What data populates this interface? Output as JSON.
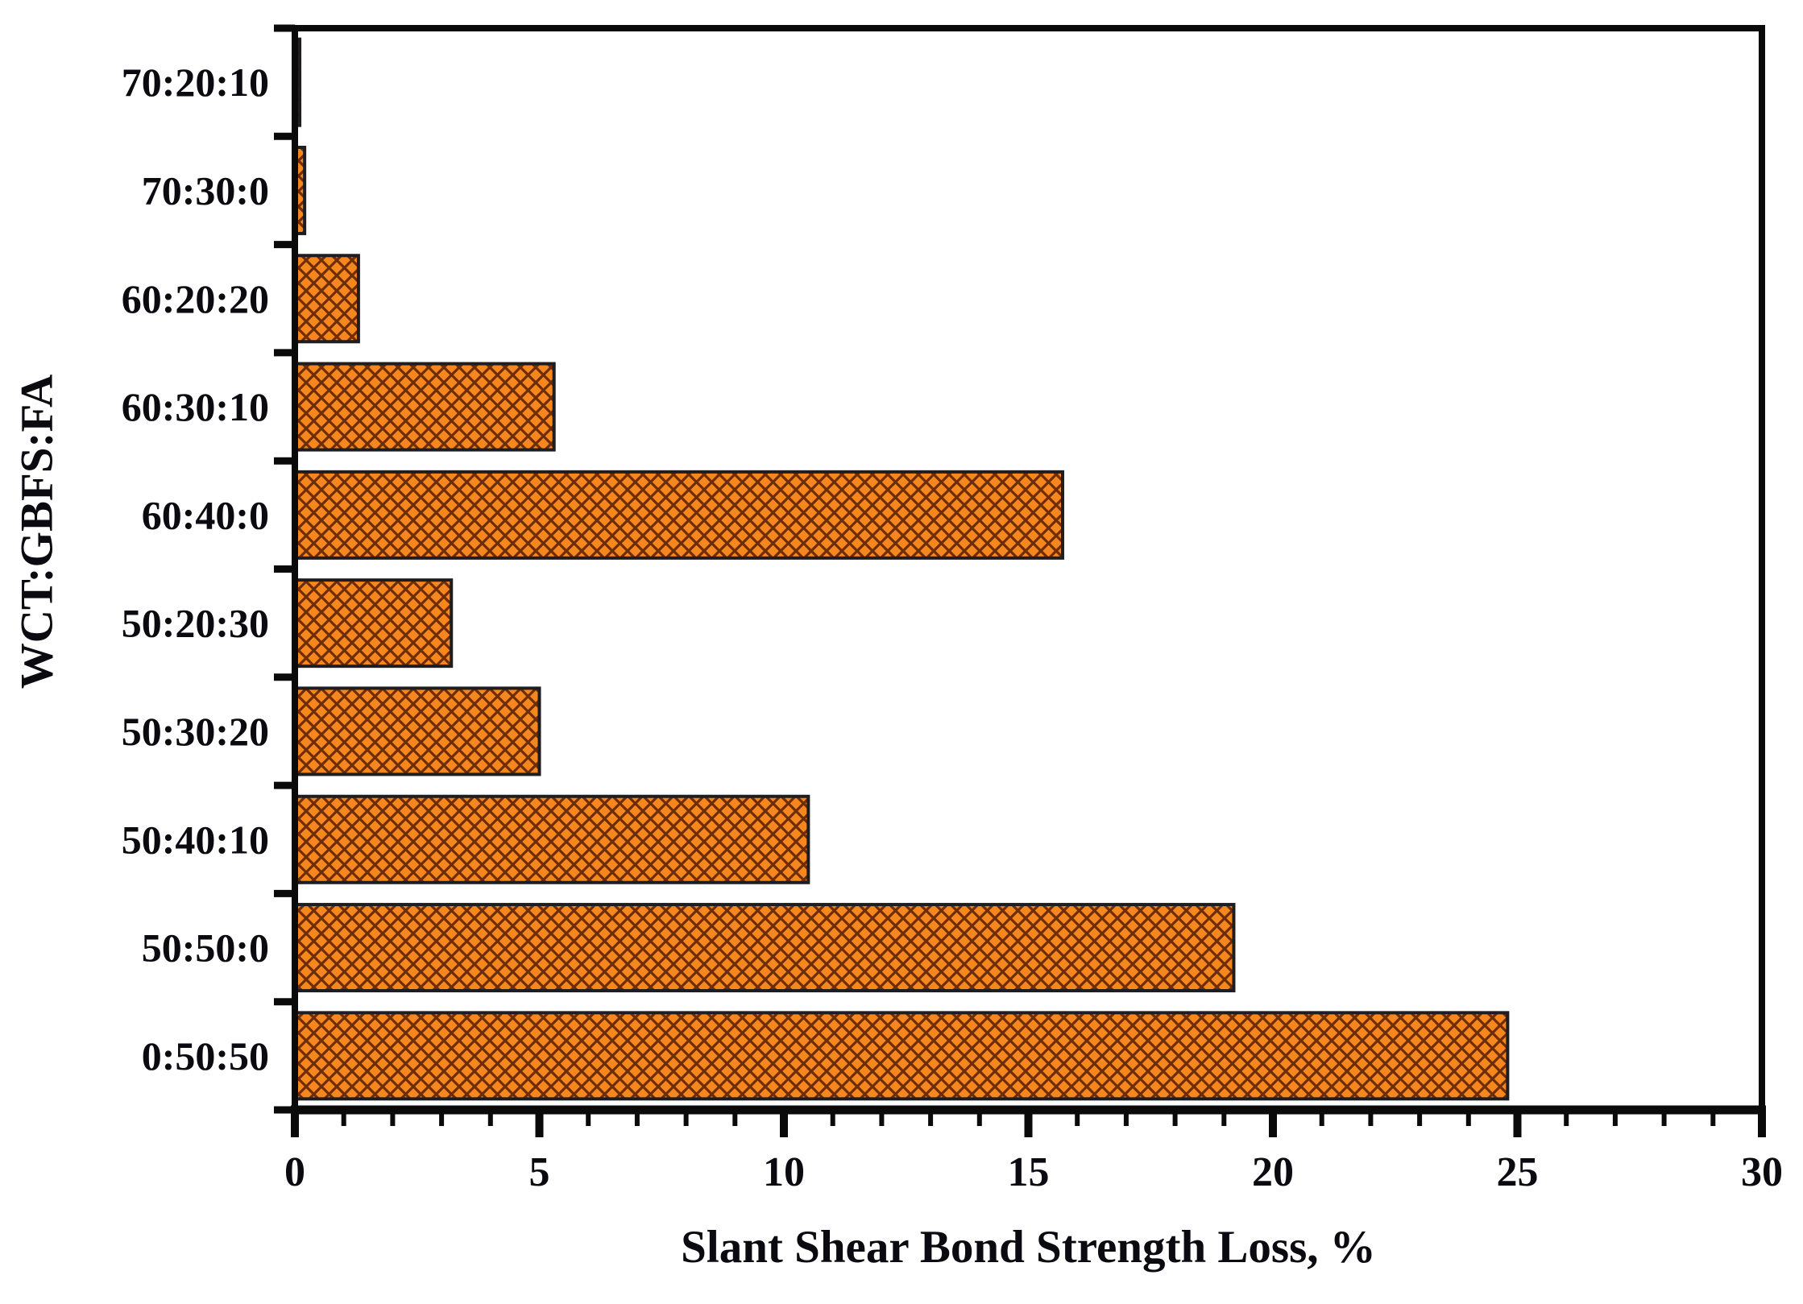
{
  "chart_data": {
    "type": "bar",
    "orientation": "horizontal",
    "title": "",
    "xlabel": "Slant Shear Bond Strength Loss, %",
    "ylabel": "WCT:GBFS:FA",
    "categories_top_to_bottom": [
      "70:20:10",
      "70:30:0",
      "60:20:20",
      "60:30:10",
      "60:40:0",
      "50:20:30",
      "50:30:20",
      "50:40:10",
      "50:50:0",
      "0:50:50"
    ],
    "values": [
      0.1,
      0.2,
      1.3,
      5.3,
      15.7,
      3.2,
      5.0,
      10.5,
      19.2,
      24.8
    ],
    "xlim": [
      0,
      30
    ],
    "x_major_ticks": [
      "0",
      "5",
      "10",
      "15",
      "20",
      "25",
      "30"
    ],
    "x_major_tick_values": [
      0,
      5,
      10,
      15,
      20,
      25,
      30
    ],
    "x_minor_tick_step": 1,
    "grid": false,
    "legend": null,
    "hatch_style": "diagonal-crosshatch",
    "colors": {
      "bar_fill": "#F6871E",
      "hatch_line": "#6E2D05",
      "bar_edge": "#1d1d22",
      "axis": "#0a0a0a",
      "text": "#0a0a10",
      "background": "#ffffff"
    }
  }
}
